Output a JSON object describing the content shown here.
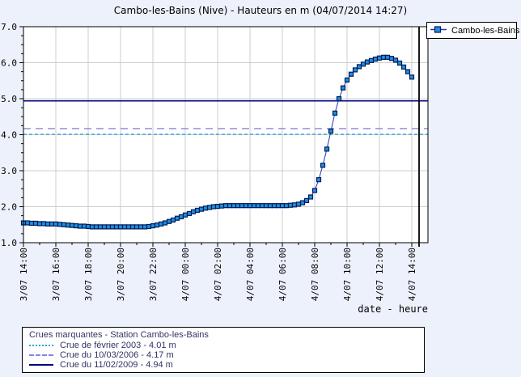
{
  "page": {
    "background": "#edf1fb"
  },
  "legend_box": {
    "title": "Crues marquantes - Station Cambo-les-Bains"
  },
  "chart_data": {
    "type": "line",
    "title": "Cambo-les-Bains (Nive) - Hauteurs en m (04/07/2014 14:27)",
    "xlabel": "date - heure",
    "ylabel": "",
    "ylim": [
      1.0,
      7.0
    ],
    "y_tick_labels": [
      "1.0",
      "2.0",
      "3.0",
      "4.0",
      "5.0",
      "6.0",
      "7.0"
    ],
    "x_tick_labels": [
      "3/07 14:00",
      "3/07 16:00",
      "3/07 18:00",
      "3/07 20:00",
      "3/07 22:00",
      "4/07 00:00",
      "4/07 02:00",
      "4/07 04:00",
      "4/07 06:00",
      "4/07 08:00",
      "4/07 10:00",
      "4/07 12:00",
      "4/07 14:00"
    ],
    "x_tick_interval_hours": 2,
    "grid": true,
    "legend_position": "top-right",
    "series": [
      {
        "name": "Cambo-les-Bains",
        "start": "3/07 14:00",
        "interval_minutes": 15,
        "marker": "square",
        "marker_fill": "#1e8fe0",
        "marker_edge": "#001a55",
        "line_color": "#2633b8",
        "values": [
          1.55,
          1.55,
          1.54,
          1.54,
          1.53,
          1.53,
          1.52,
          1.52,
          1.52,
          1.51,
          1.5,
          1.49,
          1.48,
          1.47,
          1.46,
          1.46,
          1.45,
          1.44,
          1.44,
          1.44,
          1.44,
          1.44,
          1.44,
          1.44,
          1.44,
          1.44,
          1.44,
          1.44,
          1.44,
          1.44,
          1.44,
          1.45,
          1.47,
          1.49,
          1.52,
          1.55,
          1.59,
          1.63,
          1.68,
          1.72,
          1.77,
          1.81,
          1.86,
          1.9,
          1.93,
          1.96,
          1.98,
          2.0,
          2.01,
          2.02,
          2.03,
          2.03,
          2.03,
          2.03,
          2.03,
          2.03,
          2.03,
          2.03,
          2.03,
          2.03,
          2.03,
          2.03,
          2.03,
          2.03,
          2.03,
          2.03,
          2.04,
          2.05,
          2.07,
          2.11,
          2.17,
          2.27,
          2.45,
          2.75,
          3.15,
          3.6,
          4.1,
          4.6,
          5.0,
          5.3,
          5.52,
          5.68,
          5.8,
          5.89,
          5.96,
          6.02,
          6.06,
          6.1,
          6.13,
          6.15,
          6.15,
          6.12,
          6.07,
          5.99,
          5.88,
          5.75,
          5.6
        ]
      }
    ],
    "reference_lines": [
      {
        "label": "Crue de février 2003 - 4.01 m",
        "value": 4.01,
        "style": "dotted",
        "color": "#2fa3dd"
      },
      {
        "label": "Crue du 10/03/2006 - 4.17 m",
        "value": 4.17,
        "style": "dashed",
        "color": "#8585e0"
      },
      {
        "label": "Crue du 11/02/2009 - 4.94 m",
        "value": 4.94,
        "style": "solid",
        "color": "#000080"
      }
    ],
    "now_line": {
      "label": "04/07/2014 14:27",
      "hours_from_start": 24.45,
      "color": "#000000"
    }
  }
}
